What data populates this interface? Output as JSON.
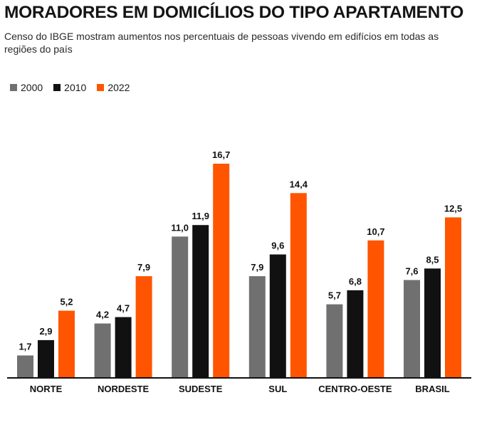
{
  "header": {
    "title": "MORADORES EM DOMICÍLIOS DO TIPO APARTAMENTO",
    "subtitle": "Censo do IBGE mostram aumentos nos percentuais de pessoas vivendo em edifícios em todas as regiões do país"
  },
  "colors": {
    "2000": "#707070",
    "2010": "#111111",
    "2022": "#ff5500"
  },
  "chart_data": {
    "type": "bar",
    "title": "MORADORES EM DOMICÍLIOS DO TIPO APARTAMENTO",
    "subtitle": "Censo do IBGE mostram aumentos nos percentuais de pessoas vivendo em edifícios em todas as regiões do país",
    "categories": [
      "NORTE",
      "NORDESTE",
      "SUDESTE",
      "SUL",
      "CENTRO-OESTE",
      "BRASIL"
    ],
    "series": [
      {
        "name": "2000",
        "values": [
          1.7,
          4.2,
          11.0,
          7.9,
          5.7,
          7.6
        ]
      },
      {
        "name": "2010",
        "values": [
          2.9,
          4.7,
          11.9,
          9.6,
          6.8,
          8.5
        ]
      },
      {
        "name": "2022",
        "values": [
          5.2,
          7.9,
          16.7,
          14.4,
          10.7,
          12.5
        ]
      }
    ],
    "value_labels": [
      [
        "1,7",
        "4,2",
        "11,0",
        "7,9",
        "5,7",
        "7,6"
      ],
      [
        "2,9",
        "4,7",
        "11,9",
        "9,6",
        "6,8",
        "8,5"
      ],
      [
        "5,2",
        "7,9",
        "16,7",
        "14,4",
        "10,7",
        "12,5"
      ]
    ],
    "xlabel": "",
    "ylabel": "",
    "ylim": [
      0,
      16.7
    ],
    "grid": false,
    "legend": "top-left"
  }
}
